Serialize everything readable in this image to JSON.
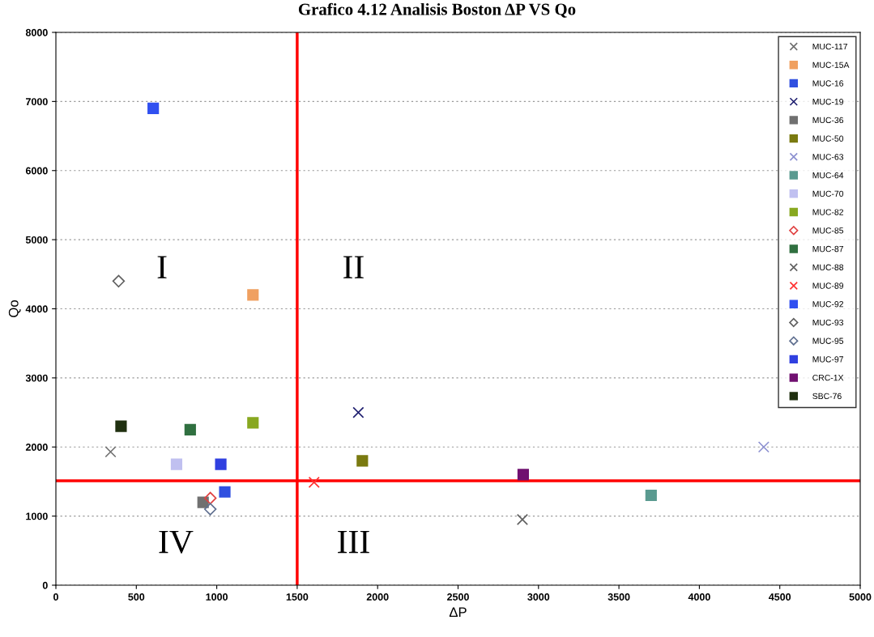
{
  "chart_data": {
    "type": "scatter",
    "title": "Grafico 4.12 Analisis Boston ΔP VS Qo",
    "xlabel": "ΔP",
    "ylabel": "Qo",
    "xlim": [
      0,
      5000
    ],
    "xticks": [
      0,
      500,
      1000,
      1500,
      2000,
      2500,
      3000,
      3500,
      4000,
      4500,
      5000
    ],
    "ylim": [
      0,
      8000
    ],
    "yticks": [
      0,
      1000,
      2000,
      3000,
      4000,
      5000,
      6000,
      7000,
      8000
    ],
    "grid": "y",
    "legend": "top right",
    "ref_lines": [
      {
        "axis": "x",
        "value": 1500,
        "color": "#ff0000"
      },
      {
        "axis": "y",
        "value": 1510,
        "color": "#ff0000"
      }
    ],
    "annotations": [
      "I",
      "II",
      "III",
      "IV"
    ],
    "series": [
      {
        "name": "MUC-117",
        "color": "#707070",
        "marker": "cross",
        "x": [
          340
        ],
        "values": [
          1930
        ]
      },
      {
        "name": "MUC-15A",
        "color": "#f0a060",
        "marker": "square",
        "x": [
          1225
        ],
        "values": [
          4200
        ]
      },
      {
        "name": "MUC-16",
        "color": "#3050e0",
        "marker": "square",
        "x": [
          1050
        ],
        "values": [
          1350
        ]
      },
      {
        "name": "MUC-19",
        "color": "#202070",
        "marker": "cross",
        "x": [
          1880
        ],
        "values": [
          2500
        ]
      },
      {
        "name": "MUC-36",
        "color": "#707070",
        "marker": "square",
        "x": [
          915
        ],
        "values": [
          1200
        ]
      },
      {
        "name": "MUC-50",
        "color": "#7a7a10",
        "marker": "square",
        "x": [
          1905
        ],
        "values": [
          1800
        ]
      },
      {
        "name": "MUC-63",
        "color": "#8c90d0",
        "marker": "cross",
        "x": [
          4400
        ],
        "values": [
          2000
        ]
      },
      {
        "name": "MUC-64",
        "color": "#5a9a90",
        "marker": "square",
        "x": [
          3700
        ],
        "values": [
          1300
        ]
      },
      {
        "name": "MUC-70",
        "color": "#c0c0f0",
        "marker": "square",
        "x": [
          750
        ],
        "values": [
          1750
        ]
      },
      {
        "name": "MUC-82",
        "color": "#88a820",
        "marker": "square",
        "x": [
          1225
        ],
        "values": [
          2350
        ]
      },
      {
        "name": "MUC-85",
        "color": "#e04040",
        "marker": "diamond",
        "x": [
          960
        ],
        "values": [
          1260
        ]
      },
      {
        "name": "MUC-87",
        "color": "#307040",
        "marker": "square",
        "x": [
          835
        ],
        "values": [
          2250
        ]
      },
      {
        "name": "MUC-88",
        "color": "#606060",
        "marker": "cross",
        "x": [
          2900
        ],
        "values": [
          950
        ]
      },
      {
        "name": "MUC-89",
        "color": "#ff3030",
        "marker": "cross",
        "x": [
          1605
        ],
        "values": [
          1490
        ]
      },
      {
        "name": "MUC-92",
        "color": "#3050f0",
        "marker": "square",
        "x": [
          605
        ],
        "values": [
          6900
        ]
      },
      {
        "name": "MUC-93",
        "color": "#606060",
        "marker": "diamond",
        "x": [
          390
        ],
        "values": [
          4400
        ]
      },
      {
        "name": "MUC-95",
        "color": "#607090",
        "marker": "diamond",
        "x": [
          960
        ],
        "values": [
          1100
        ]
      },
      {
        "name": "MUC-97",
        "color": "#3040e0",
        "marker": "square",
        "x": [
          1025
        ],
        "values": [
          1750
        ]
      },
      {
        "name": "CRC-1X",
        "color": "#701070",
        "marker": "square",
        "x": [
          2905
        ],
        "values": [
          1600
        ]
      },
      {
        "name": "SBC-76",
        "color": "#203010",
        "marker": "square",
        "x": [
          405
        ],
        "values": [
          2300
        ]
      }
    ]
  }
}
